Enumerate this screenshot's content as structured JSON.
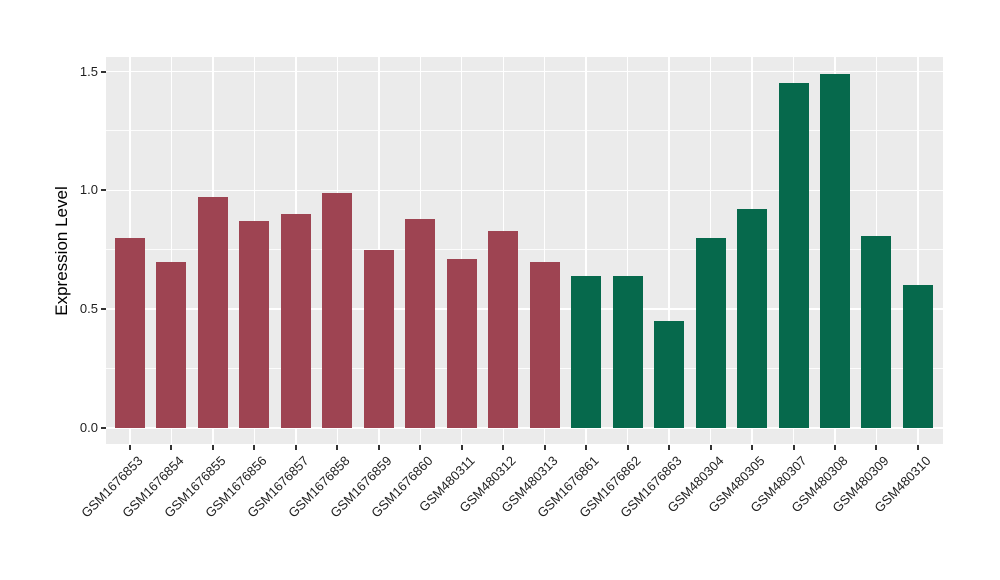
{
  "chart_data": {
    "type": "bar",
    "title": "",
    "xlabel": "",
    "ylabel": "Expression Level",
    "ylim": [
      0,
      1.5
    ],
    "yticks": [
      0,
      0.5,
      1,
      1.5
    ],
    "ytick_labels": [
      "0.0",
      "0.5",
      "1.0",
      "1.5"
    ],
    "yminor_ticks": [
      0.25,
      0.75,
      1.25
    ],
    "grid": "white major and minor horizontal lines plus vertical lines at each category center, on grey panel",
    "legend_position": "none",
    "panel_background": "#EBEBEB",
    "gridline_color": "#FFFFFF",
    "axis_text_color": "#1F1F1F",
    "tick_mark_color": "#333333",
    "group_colors": {
      "red_group": "#9E4452",
      "green_group": "#06694C"
    },
    "categories": [
      "GSM1676853",
      "GSM1676854",
      "GSM1676855",
      "GSM1676856",
      "GSM1676857",
      "GSM1676858",
      "GSM1676859",
      "GSM1676860",
      "GSM480311",
      "GSM480312",
      "GSM480313",
      "GSM1676861",
      "GSM1676862",
      "GSM1676863",
      "GSM480304",
      "GSM480305",
      "GSM480307",
      "GSM480308",
      "GSM480309",
      "GSM480310"
    ],
    "values": [
      0.8,
      0.7,
      0.97,
      0.87,
      0.9,
      0.99,
      0.75,
      0.88,
      0.71,
      0.83,
      0.7,
      0.64,
      0.64,
      0.45,
      0.8,
      0.92,
      1.45,
      1.49,
      0.81,
      0.6
    ],
    "bar_groups": [
      "red_group",
      "red_group",
      "red_group",
      "red_group",
      "red_group",
      "red_group",
      "red_group",
      "red_group",
      "red_group",
      "red_group",
      "red_group",
      "green_group",
      "green_group",
      "green_group",
      "green_group",
      "green_group",
      "green_group",
      "green_group",
      "green_group",
      "green_group"
    ]
  }
}
